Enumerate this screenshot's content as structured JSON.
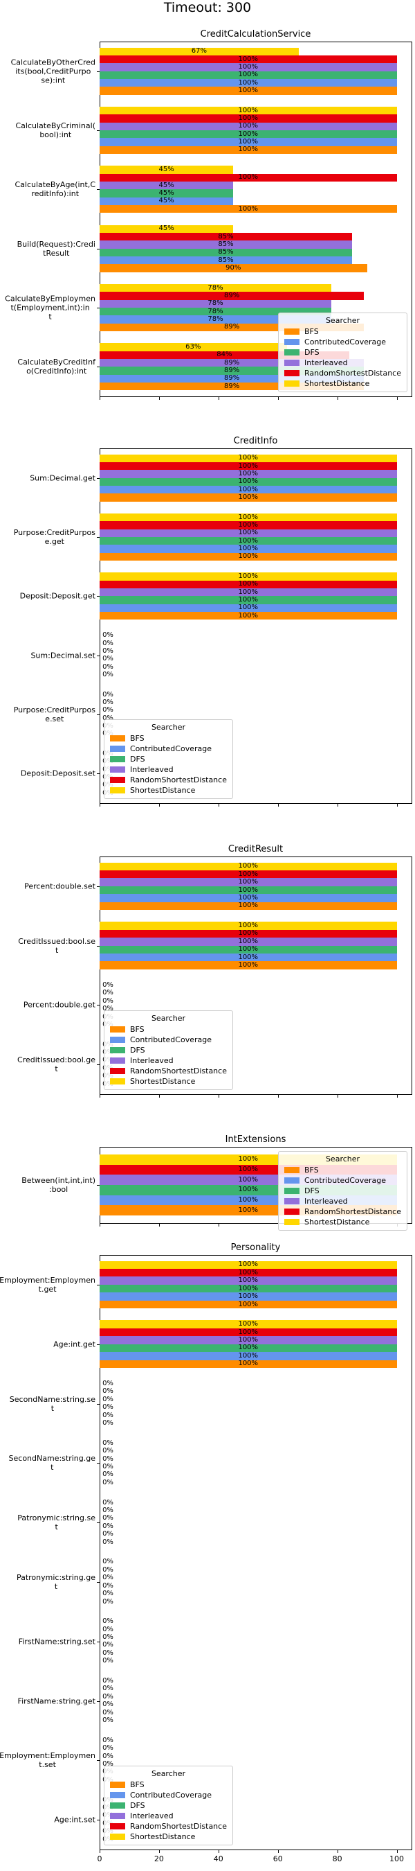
{
  "title": "Timeout: 300",
  "chart_data": [
    {
      "type": "barh",
      "title": "CreditCalculationService",
      "legend_title": "Searcher",
      "legend_loc": "lower right",
      "categories": [
        "CalculateByOtherCred\nits(bool,CreditPurpo\nse):int",
        "CalculateByCriminal(\nbool):int",
        "CalculateByAge(int,C\nreditInfo):int",
        "Build(Request):Credi\ntResult",
        "CalculateByEmploymen\nt(Employment,int):in\nt",
        "CalculateByCreditInf\no(CreditInfo):int"
      ],
      "xlim": [
        0,
        105
      ],
      "xticks": [
        0,
        20,
        40,
        60,
        80,
        100
      ],
      "series": [
        {
          "name": "BFS",
          "color": "#ff8c00",
          "values": [
            100,
            100,
            100,
            90,
            89,
            89
          ],
          "value_labels": [
            "100%",
            "100%",
            "100%",
            "90%",
            "89%",
            "89%"
          ]
        },
        {
          "name": "ContributedCoverage",
          "color": "#6495ed",
          "values": [
            100,
            100,
            45,
            85,
            78,
            89
          ],
          "value_labels": [
            "100%",
            "100%",
            "45%",
            "85%",
            "78%",
            "89%"
          ]
        },
        {
          "name": "DFS",
          "color": "#3cb371",
          "values": [
            100,
            100,
            45,
            85,
            78,
            89
          ],
          "value_labels": [
            "100%",
            "100%",
            "45%",
            "85%",
            "78%",
            "89%"
          ]
        },
        {
          "name": "Interleaved",
          "color": "#9370db",
          "values": [
            100,
            100,
            45,
            85,
            78,
            89
          ],
          "value_labels": [
            "100%",
            "100%",
            "45%",
            "85%",
            "78%",
            "89%"
          ]
        },
        {
          "name": "RandomShortestDistance",
          "color": "#e8000b",
          "values": [
            100,
            100,
            100,
            85,
            89,
            84
          ],
          "value_labels": [
            "100%",
            "100%",
            "100%",
            "85%",
            "89%",
            "84%"
          ]
        },
        {
          "name": "ShortestDistance",
          "color": "#ffd700",
          "values": [
            67,
            100,
            45,
            45,
            78,
            63
          ],
          "value_labels": [
            "67%",
            "100%",
            "45%",
            "45%",
            "78%",
            "63%"
          ]
        }
      ]
    },
    {
      "type": "barh",
      "title": "CreditInfo",
      "legend_title": "Searcher",
      "legend_loc": "lower left",
      "categories": [
        "Sum:Decimal.get",
        "Purpose:CreditPurpos\ne.get",
        "Deposit:Deposit.get",
        "Sum:Decimal.set",
        "Purpose:CreditPurpos\ne.set",
        "Deposit:Deposit.set"
      ],
      "xlim": [
        0,
        105
      ],
      "xticks": [
        0,
        20,
        40,
        60,
        80,
        100
      ],
      "series": [
        {
          "name": "BFS",
          "color": "#ff8c00",
          "values": [
            100,
            100,
            100,
            0,
            0,
            0
          ],
          "value_labels": [
            "100%",
            "100%",
            "100%",
            "0%",
            "0%",
            "0%"
          ]
        },
        {
          "name": "ContributedCoverage",
          "color": "#6495ed",
          "values": [
            100,
            100,
            100,
            0,
            0,
            0
          ],
          "value_labels": [
            "100%",
            "100%",
            "100%",
            "0%",
            "0%",
            "0%"
          ]
        },
        {
          "name": "DFS",
          "color": "#3cb371",
          "values": [
            100,
            100,
            100,
            0,
            0,
            0
          ],
          "value_labels": [
            "100%",
            "100%",
            "100%",
            "0%",
            "0%",
            "0%"
          ]
        },
        {
          "name": "Interleaved",
          "color": "#9370db",
          "values": [
            100,
            100,
            100,
            0,
            0,
            0
          ],
          "value_labels": [
            "100%",
            "100%",
            "100%",
            "0%",
            "0%",
            "0%"
          ]
        },
        {
          "name": "RandomShortestDistance",
          "color": "#e8000b",
          "values": [
            100,
            100,
            100,
            0,
            0,
            0
          ],
          "value_labels": [
            "100%",
            "100%",
            "100%",
            "0%",
            "0%",
            "0%"
          ]
        },
        {
          "name": "ShortestDistance",
          "color": "#ffd700",
          "values": [
            100,
            100,
            100,
            0,
            0,
            0
          ],
          "value_labels": [
            "100%",
            "100%",
            "100%",
            "0%",
            "0%",
            "0%"
          ]
        }
      ]
    },
    {
      "type": "barh",
      "title": "CreditResult",
      "legend_title": "Searcher",
      "legend_loc": "lower left",
      "categories": [
        "Percent:double.set",
        "CreditIssued:bool.se\nt",
        "Percent:double.get",
        "CreditIssued:bool.ge\nt"
      ],
      "xlim": [
        0,
        105
      ],
      "xticks": [
        0,
        20,
        40,
        60,
        80,
        100
      ],
      "series": [
        {
          "name": "BFS",
          "color": "#ff8c00",
          "values": [
            100,
            100,
            0,
            0
          ],
          "value_labels": [
            "100%",
            "100%",
            "0%",
            "0%"
          ]
        },
        {
          "name": "ContributedCoverage",
          "color": "#6495ed",
          "values": [
            100,
            100,
            0,
            0
          ],
          "value_labels": [
            "100%",
            "100%",
            "0%",
            "0%"
          ]
        },
        {
          "name": "DFS",
          "color": "#3cb371",
          "values": [
            100,
            100,
            0,
            0
          ],
          "value_labels": [
            "100%",
            "100%",
            "0%",
            "0%"
          ]
        },
        {
          "name": "Interleaved",
          "color": "#9370db",
          "values": [
            100,
            100,
            0,
            0
          ],
          "value_labels": [
            "100%",
            "100%",
            "0%",
            "0%"
          ]
        },
        {
          "name": "RandomShortestDistance",
          "color": "#e8000b",
          "values": [
            100,
            100,
            0,
            0
          ],
          "value_labels": [
            "100%",
            "100%",
            "0%",
            "0%"
          ]
        },
        {
          "name": "ShortestDistance",
          "color": "#ffd700",
          "values": [
            100,
            100,
            0,
            0
          ],
          "value_labels": [
            "100%",
            "100%",
            "0%",
            "0%"
          ]
        }
      ]
    },
    {
      "type": "barh",
      "title": "IntExtensions",
      "legend_title": "Searcher",
      "legend_loc": "upper right",
      "categories": [
        "Between(int,int,int)\n:bool"
      ],
      "xlim": [
        0,
        105
      ],
      "xticks": [
        0,
        20,
        40,
        60,
        80,
        100
      ],
      "series": [
        {
          "name": "BFS",
          "color": "#ff8c00",
          "values": [
            100
          ],
          "value_labels": [
            "100%"
          ]
        },
        {
          "name": "ContributedCoverage",
          "color": "#6495ed",
          "values": [
            100
          ],
          "value_labels": [
            "100%"
          ]
        },
        {
          "name": "DFS",
          "color": "#3cb371",
          "values": [
            100
          ],
          "value_labels": [
            "100%"
          ]
        },
        {
          "name": "Interleaved",
          "color": "#9370db",
          "values": [
            100
          ],
          "value_labels": [
            "100%"
          ]
        },
        {
          "name": "RandomShortestDistance",
          "color": "#e8000b",
          "values": [
            100
          ],
          "value_labels": [
            "100%"
          ]
        },
        {
          "name": "ShortestDistance",
          "color": "#ffd700",
          "values": [
            100
          ],
          "value_labels": [
            "100%"
          ]
        }
      ]
    },
    {
      "type": "barh",
      "title": "Personality",
      "legend_title": "Searcher",
      "legend_loc": "lower left",
      "categories": [
        "Employment:Employmen\nt.get",
        "Age:int.get",
        "SecondName:string.se\nt",
        "SecondName:string.ge\nt",
        "Patronymic:string.se\nt",
        "Patronymic:string.ge\nt",
        "FirstName:string.set",
        "FirstName:string.get",
        "Employment:Employmen\nt.set",
        "Age:int.set"
      ],
      "xlim": [
        0,
        105
      ],
      "xticks": [
        0,
        20,
        40,
        60,
        80,
        100
      ],
      "series": [
        {
          "name": "BFS",
          "color": "#ff8c00",
          "values": [
            100,
            100,
            0,
            0,
            0,
            0,
            0,
            0,
            0,
            0
          ],
          "value_labels": [
            "100%",
            "100%",
            "0%",
            "0%",
            "0%",
            "0%",
            "0%",
            "0%",
            "0%",
            "0%"
          ]
        },
        {
          "name": "ContributedCoverage",
          "color": "#6495ed",
          "values": [
            100,
            100,
            0,
            0,
            0,
            0,
            0,
            0,
            0,
            0
          ],
          "value_labels": [
            "100%",
            "100%",
            "0%",
            "0%",
            "0%",
            "0%",
            "0%",
            "0%",
            "0%",
            "0%"
          ]
        },
        {
          "name": "DFS",
          "color": "#3cb371",
          "values": [
            100,
            100,
            0,
            0,
            0,
            0,
            0,
            0,
            0,
            0
          ],
          "value_labels": [
            "100%",
            "100%",
            "0%",
            "0%",
            "0%",
            "0%",
            "0%",
            "0%",
            "0%",
            "0%"
          ]
        },
        {
          "name": "Interleaved",
          "color": "#9370db",
          "values": [
            100,
            100,
            0,
            0,
            0,
            0,
            0,
            0,
            0,
            0
          ],
          "value_labels": [
            "100%",
            "100%",
            "0%",
            "0%",
            "0%",
            "0%",
            "0%",
            "0%",
            "0%",
            "0%"
          ]
        },
        {
          "name": "RandomShortestDistance",
          "color": "#e8000b",
          "values": [
            100,
            100,
            0,
            0,
            0,
            0,
            0,
            0,
            0,
            0
          ],
          "value_labels": [
            "100%",
            "100%",
            "0%",
            "0%",
            "0%",
            "0%",
            "0%",
            "0%",
            "0%",
            "0%"
          ]
        },
        {
          "name": "ShortestDistance",
          "color": "#ffd700",
          "values": [
            100,
            100,
            0,
            0,
            0,
            0,
            0,
            0,
            0,
            0
          ],
          "value_labels": [
            "100%",
            "100%",
            "0%",
            "0%",
            "0%",
            "0%",
            "0%",
            "0%",
            "0%",
            "0%"
          ]
        }
      ]
    }
  ]
}
